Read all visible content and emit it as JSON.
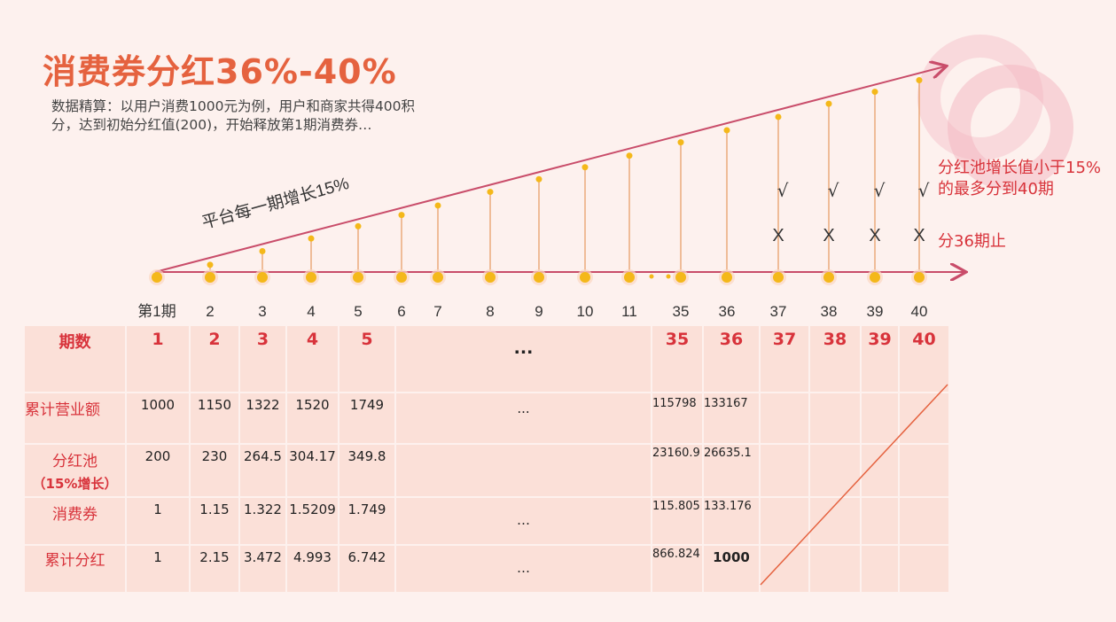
{
  "title": "消费券分红36%-40%",
  "description": "数据精算：以用户消费1000元为例，用户和商家共得400积分，达到初始分红值(200)，开始释放第1期消费券…",
  "growth_label": "平台每一期增长15%",
  "note_right": "分红池增长值小于15%的最多分到40期",
  "note_stop": "分36期止",
  "check_mark": "√",
  "x_mark": "X",
  "colors": {
    "accent": "#e5623f",
    "red": "#d8333b",
    "line": "#c94d6a",
    "dot": "#f4b81a",
    "table_bg": "#fbe0d8"
  },
  "timeline": {
    "labels": [
      "第1期",
      "2",
      "3",
      "4",
      "5",
      "6",
      "7",
      "8",
      "9",
      "10",
      "11",
      "35",
      "36",
      "37",
      "38",
      "39",
      "40"
    ],
    "checked_periods": [
      "37",
      "38",
      "39",
      "40"
    ]
  },
  "table": {
    "header": {
      "label": "期数",
      "cols": [
        "1",
        "2",
        "3",
        "4",
        "5"
      ],
      "ellipsis": "...",
      "tail": [
        "35",
        "36",
        "37",
        "38",
        "39",
        "40"
      ]
    },
    "rows": [
      {
        "label": "累计营业额",
        "label2": "",
        "cols": [
          "1000",
          "1150",
          "1322",
          "1520",
          "1749"
        ],
        "ellipsis": "...",
        "tail": [
          "115798",
          "133167"
        ]
      },
      {
        "label": "分红池",
        "label2": "（15%增长）",
        "cols": [
          "200",
          "230",
          "264.5",
          "304.17",
          "349.8"
        ],
        "ellipsis": "",
        "tail": [
          "23160.9",
          "26635.1"
        ]
      },
      {
        "label": "消费券",
        "label2": "",
        "cols": [
          "1",
          "1.15",
          "1.322",
          "1.5209",
          "1.749"
        ],
        "ellipsis": "…",
        "tail": [
          "115.805",
          "133.176"
        ]
      },
      {
        "label": "累计分红",
        "label2": "",
        "cols": [
          "1",
          "2.15",
          "3.472",
          "4.993",
          "6.742"
        ],
        "ellipsis": "…",
        "tail": [
          "866.824",
          "1000"
        ]
      }
    ]
  }
}
